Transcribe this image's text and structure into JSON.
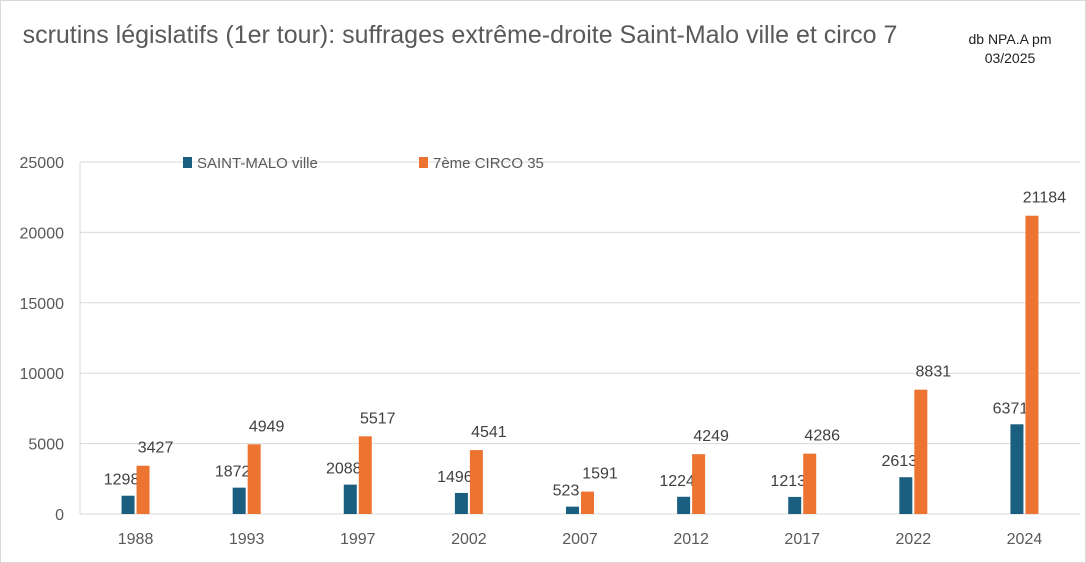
{
  "chart_data": {
    "type": "bar",
    "title": "scrutins législatifs (1er tour): suffrages extrême-droite Saint-Malo ville et circo 7",
    "note": [
      "db NPA.A pm",
      "03/2025"
    ],
    "categories": [
      "1988",
      "1993",
      "1997",
      "2002",
      "2007",
      "2012",
      "2017",
      "2022",
      "2024"
    ],
    "series": [
      {
        "name": "SAINT-MALO ville",
        "color": "#1a5e80",
        "values": [
          1298,
          1872,
          2088,
          1496,
          523,
          1224,
          1213,
          2613,
          6371
        ]
      },
      {
        "name": "7ème CIRCO 35",
        "color": "#ed7331",
        "values": [
          3427,
          4949,
          5517,
          4541,
          1591,
          4249,
          4286,
          8831,
          21184
        ]
      }
    ],
    "ylim": [
      0,
      25000
    ],
    "yticks": [
      "0",
      "5000",
      "10000",
      "15000",
      "20000",
      "25000"
    ],
    "grid": true,
    "legend": "top-left",
    "xlabel": "",
    "ylabel": ""
  }
}
